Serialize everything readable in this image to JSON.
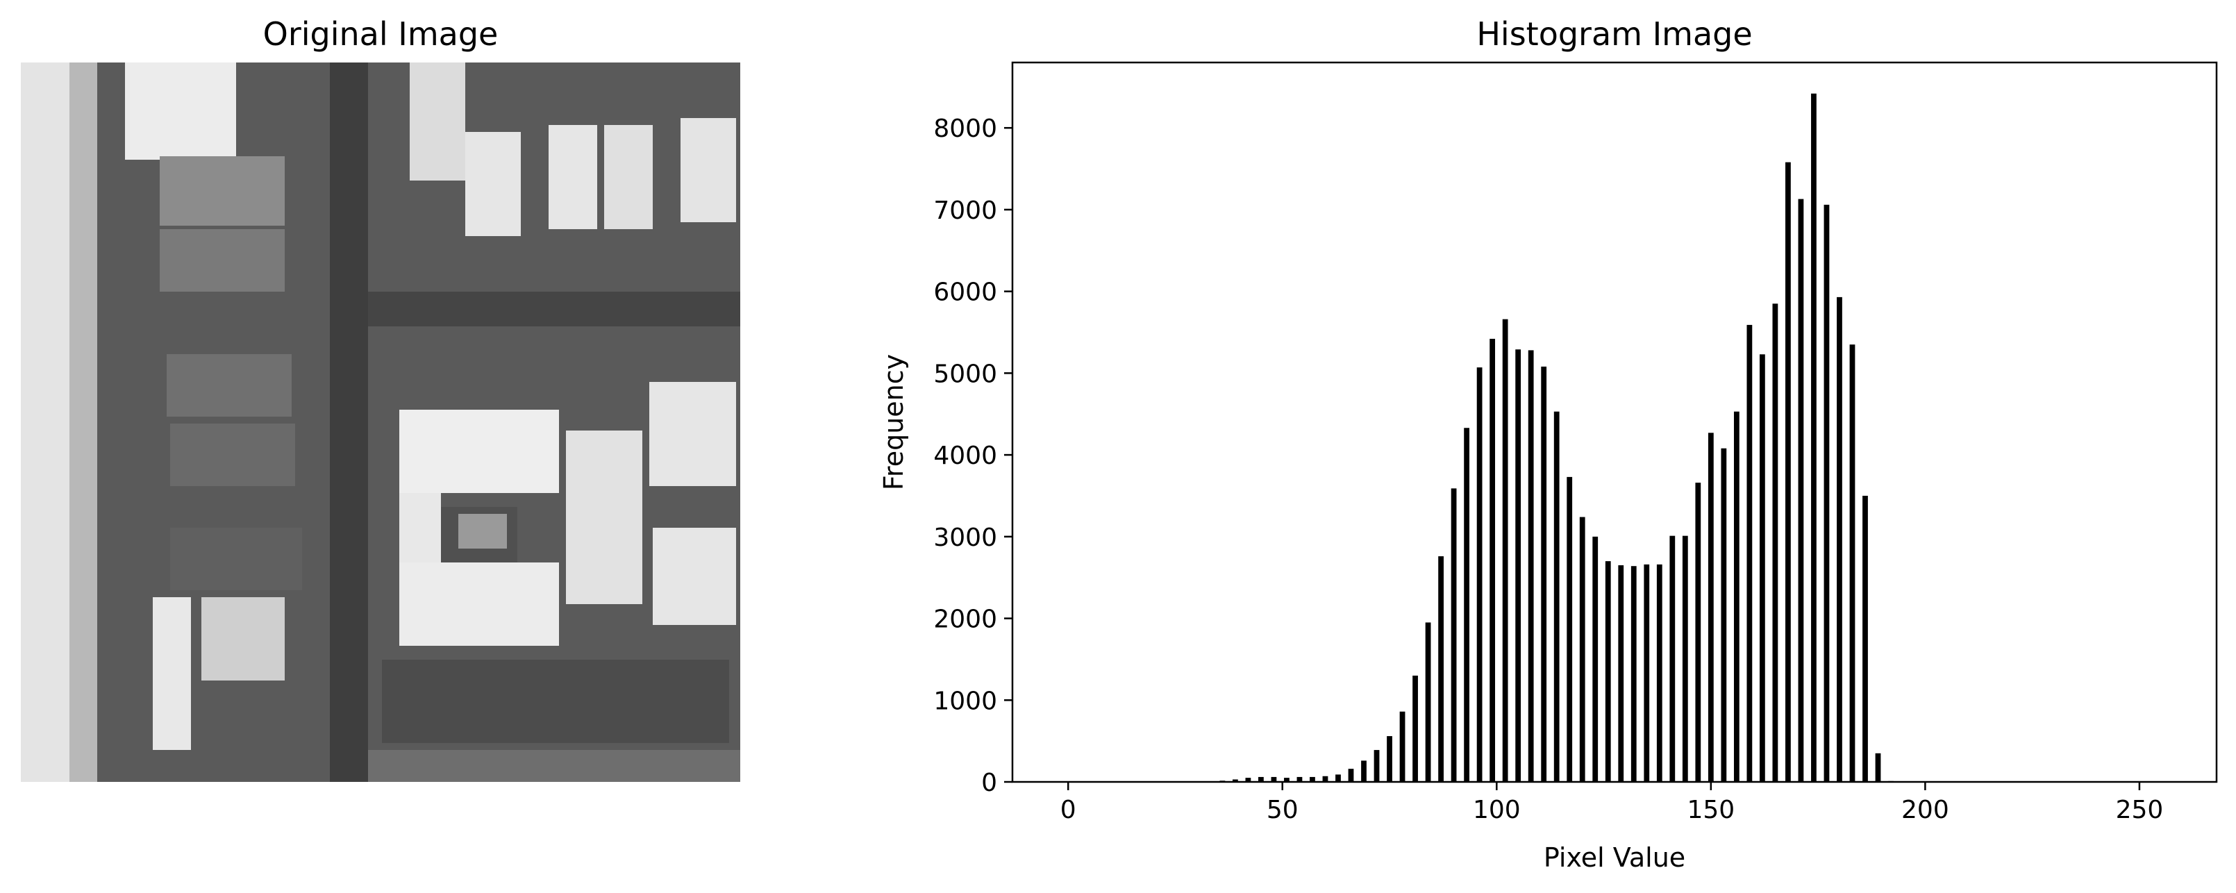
{
  "left_panel": {
    "title": "Original Image"
  },
  "right_panel": {
    "title": "Histogram Image"
  },
  "chart_data": {
    "type": "bar",
    "title": "Histogram Image",
    "xlabel": "Pixel Value",
    "ylabel": "Frequency",
    "xlim": [
      -13,
      268
    ],
    "ylim": [
      0,
      8800
    ],
    "xticks": [
      0,
      50,
      100,
      150,
      200,
      250
    ],
    "yticks": [
      0,
      1000,
      2000,
      3000,
      4000,
      5000,
      6000,
      7000,
      8000
    ],
    "bar_color": "#000000",
    "x": [
      0,
      3,
      6,
      9,
      12,
      15,
      18,
      21,
      24,
      27,
      30,
      33,
      36,
      39,
      42,
      45,
      48,
      51,
      54,
      57,
      60,
      63,
      66,
      69,
      72,
      75,
      78,
      81,
      84,
      87,
      90,
      93,
      96,
      99,
      102,
      105,
      108,
      111,
      114,
      117,
      120,
      123,
      126,
      129,
      132,
      135,
      138,
      141,
      144,
      147,
      150,
      153,
      156,
      159,
      162,
      165,
      168,
      171,
      174,
      177,
      180,
      183,
      186,
      189,
      192,
      195,
      198,
      201,
      204,
      207,
      210,
      213,
      216,
      219,
      222,
      225,
      228,
      231,
      234,
      237,
      240,
      243,
      246,
      249,
      252,
      255
    ],
    "values": [
      8,
      5,
      5,
      5,
      5,
      5,
      5,
      5,
      5,
      5,
      5,
      5,
      15,
      30,
      50,
      60,
      60,
      50,
      60,
      60,
      70,
      90,
      160,
      260,
      390,
      560,
      860,
      1300,
      1950,
      2760,
      3590,
      4330,
      5070,
      5420,
      5660,
      5290,
      5280,
      5080,
      4530,
      3730,
      3240,
      3000,
      2700,
      2650,
      2640,
      2660,
      2660,
      3010,
      3010,
      3660,
      4270,
      4080,
      4530,
      5590,
      5230,
      5850,
      7580,
      7130,
      8420,
      7060,
      5930,
      5350,
      3500,
      350,
      10,
      5,
      5,
      5,
      5,
      5,
      5,
      5,
      5,
      5,
      5,
      5,
      5,
      5,
      5,
      5,
      5,
      5,
      5,
      5,
      5,
      5
    ]
  }
}
